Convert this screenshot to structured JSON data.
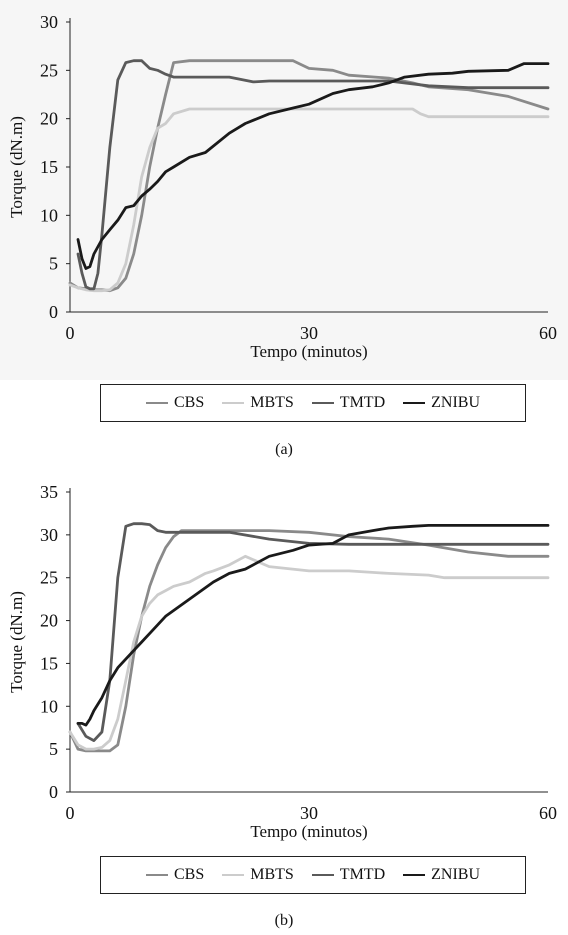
{
  "charts": [
    {
      "id": "a",
      "caption": "(a)",
      "chart_data": {
        "type": "line",
        "xlabel": "Tempo (minutos)",
        "ylabel": "Torque (dN.m)",
        "xlim": [
          0,
          60
        ],
        "ylim": [
          0,
          30
        ],
        "xticks": [
          0,
          30,
          60
        ],
        "yticks": [
          0,
          5,
          10,
          15,
          20,
          25,
          30
        ],
        "grid": false,
        "legend_position": "bottom",
        "series": [
          {
            "name": "CBS",
            "color": "#8a8a8a",
            "x": [
              0,
              1,
              2,
              3,
              4,
              5,
              6,
              7,
              8,
              9,
              10,
              11,
              12,
              13,
              15,
              20,
              25,
              28,
              30,
              33,
              35,
              40,
              43,
              45,
              50,
              55,
              60
            ],
            "y": [
              3,
              2.5,
              2.4,
              2.3,
              2.3,
              2.2,
              2.5,
              3.5,
              6,
              10,
              15,
              19,
              22.5,
              25.8,
              26,
              26,
              26,
              26,
              25.2,
              25,
              24.5,
              24.2,
              23.7,
              23.3,
              23,
              22.3,
              21
            ]
          },
          {
            "name": "MBTS",
            "color": "#cccccc",
            "x": [
              0,
              1,
              2,
              3,
              4,
              5,
              6,
              7,
              8,
              9,
              10,
              11,
              12,
              13,
              15,
              20,
              25,
              30,
              35,
              40,
              43,
              44,
              45,
              50,
              55,
              60
            ],
            "y": [
              2.8,
              2.5,
              2.3,
              2.2,
              2.2,
              2.3,
              3,
              5,
              9,
              14,
              17,
              19,
              19.5,
              20.5,
              21,
              21,
              21,
              21,
              21,
              21,
              21,
              20.5,
              20.2,
              20.2,
              20.2,
              20.2
            ]
          },
          {
            "name": "TMTD",
            "color": "#5a5a5a",
            "x": [
              1,
              1.5,
              2,
              2.5,
              3,
              3.5,
              4,
              5,
              6,
              7,
              8,
              9,
              10,
              11,
              12,
              13,
              15,
              20,
              23,
              25,
              30,
              40,
              45,
              50,
              55,
              60
            ],
            "y": [
              6,
              4,
              2.6,
              2.4,
              2.4,
              4,
              8,
              17,
              24,
              25.8,
              26,
              26,
              25.2,
              25,
              24.6,
              24.3,
              24.3,
              24.3,
              23.8,
              23.9,
              23.9,
              23.9,
              23.4,
              23.2,
              23.2,
              23.2
            ]
          },
          {
            "name": "ZNIBU",
            "color": "#1a1a1a",
            "x": [
              1,
              1.5,
              2,
              2.5,
              3,
              4,
              5,
              6,
              7,
              8,
              9,
              10,
              11,
              12,
              13,
              15,
              17,
              20,
              22,
              25,
              28,
              30,
              33,
              35,
              38,
              40,
              42,
              45,
              48,
              50,
              55,
              57,
              60
            ],
            "y": [
              7.5,
              5.5,
              4.5,
              4.7,
              6,
              7.5,
              8.5,
              9.5,
              10.8,
              11,
              12,
              12.7,
              13.5,
              14.5,
              15,
              16,
              16.5,
              18.5,
              19.5,
              20.5,
              21.1,
              21.5,
              22.6,
              23,
              23.3,
              23.7,
              24.3,
              24.6,
              24.7,
              24.9,
              25,
              25.7,
              25.7
            ]
          }
        ]
      },
      "legend": [
        "CBS",
        "MBTS",
        "TMTD",
        "ZNIBU"
      ]
    },
    {
      "id": "b",
      "caption": "(b)",
      "chart_data": {
        "type": "line",
        "xlabel": "Tempo (minutos)",
        "ylabel": "Torque (dN.m)",
        "xlim": [
          0,
          60
        ],
        "ylim": [
          0,
          35
        ],
        "xticks": [
          0,
          30,
          60
        ],
        "yticks": [
          0,
          5,
          10,
          15,
          20,
          25,
          30,
          35
        ],
        "grid": false,
        "legend_position": "bottom",
        "series": [
          {
            "name": "CBS",
            "color": "#8a8a8a",
            "x": [
              0,
              1,
              2,
              3,
              4,
              5,
              6,
              7,
              8,
              9,
              10,
              11,
              12,
              13,
              14,
              15,
              20,
              25,
              30,
              35,
              40,
              45,
              50,
              55,
              60
            ],
            "y": [
              7,
              5,
              4.8,
              4.8,
              4.8,
              4.8,
              5.5,
              10,
              16,
              20.5,
              24,
              26.5,
              28.5,
              29.8,
              30.5,
              30.5,
              30.5,
              30.5,
              30.3,
              29.8,
              29.5,
              28.8,
              28,
              27.5,
              27.5
            ]
          },
          {
            "name": "MBTS",
            "color": "#cccccc",
            "x": [
              0,
              1,
              2,
              3,
              4,
              5,
              6,
              7,
              8,
              9,
              10,
              11,
              12,
              13,
              15,
              17,
              18,
              20,
              22,
              25,
              30,
              35,
              40,
              45,
              47,
              50,
              55,
              60
            ],
            "y": [
              7,
              5.5,
              5,
              5,
              5.2,
              6,
              8.5,
              13,
              17.5,
              20.5,
              22,
              23,
              23.5,
              24,
              24.5,
              25.5,
              25.8,
              26.5,
              27.5,
              26.3,
              25.8,
              25.8,
              25.5,
              25.3,
              25,
              25,
              25,
              25
            ]
          },
          {
            "name": "TMTD",
            "color": "#5a5a5a",
            "x": [
              1,
              2,
              3,
              4,
              5,
              6,
              7,
              8,
              9,
              10,
              11,
              12,
              15,
              20,
              25,
              30,
              35,
              40,
              45,
              50,
              55,
              60
            ],
            "y": [
              8,
              6.5,
              6,
              7,
              13,
              25,
              31,
              31.3,
              31.3,
              31.2,
              30.5,
              30.3,
              30.3,
              30.3,
              29.5,
              29,
              28.9,
              28.9,
              28.9,
              28.9,
              28.9,
              28.9
            ]
          },
          {
            "name": "ZNIBU",
            "color": "#1a1a1a",
            "x": [
              1,
              1.5,
              2,
              2.5,
              3,
              4,
              5,
              6,
              7,
              8,
              9,
              10,
              12,
              15,
              18,
              20,
              22,
              25,
              28,
              30,
              33,
              35,
              38,
              40,
              43,
              45,
              50,
              55,
              60
            ],
            "y": [
              8,
              8,
              7.8,
              8.5,
              9.5,
              11,
              13,
              14.5,
              15.5,
              16.5,
              17.5,
              18.5,
              20.5,
              22.5,
              24.5,
              25.5,
              26,
              27.5,
              28.2,
              28.8,
              29,
              30,
              30.5,
              30.8,
              31,
              31.1,
              31.1,
              31.1,
              31.1
            ]
          }
        ]
      },
      "legend": [
        "CBS",
        "MBTS",
        "TMTD",
        "ZNIBU"
      ]
    }
  ]
}
